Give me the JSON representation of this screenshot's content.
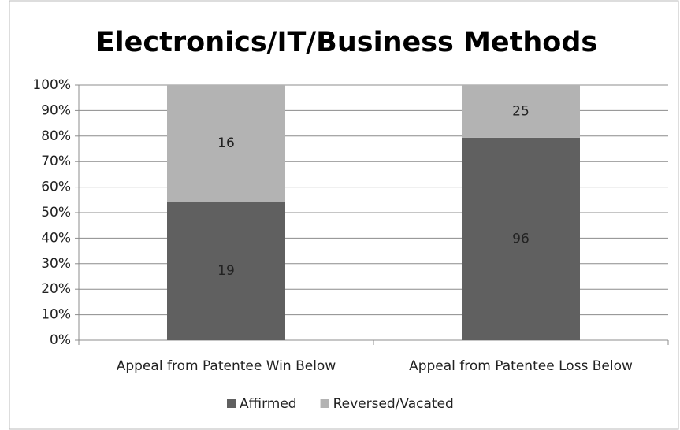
{
  "chart_data": {
    "type": "bar",
    "stacking": "percent",
    "title": "Electronics/IT/Business Methods",
    "categories": [
      "Appeal from Patentee Win Below",
      "Appeal from Patentee Loss Below"
    ],
    "series": [
      {
        "name": "Affirmed",
        "color": "#606060",
        "values": [
          19,
          96
        ]
      },
      {
        "name": "Reversed/Vacated",
        "color": "#b3b3b3",
        "values": [
          16,
          25
        ]
      }
    ],
    "ylim": [
      0,
      100
    ],
    "yticks": [
      {
        "value": 0,
        "label": "0%"
      },
      {
        "value": 10,
        "label": "10%"
      },
      {
        "value": 20,
        "label": "20%"
      },
      {
        "value": 30,
        "label": "30%"
      },
      {
        "value": 40,
        "label": "40%"
      },
      {
        "value": 50,
        "label": "50%"
      },
      {
        "value": 60,
        "label": "60%"
      },
      {
        "value": 70,
        "label": "70%"
      },
      {
        "value": 80,
        "label": "80%"
      },
      {
        "value": 90,
        "label": "90%"
      },
      {
        "value": 100,
        "label": "100%"
      }
    ],
    "grid": true,
    "legend": "bottom"
  }
}
